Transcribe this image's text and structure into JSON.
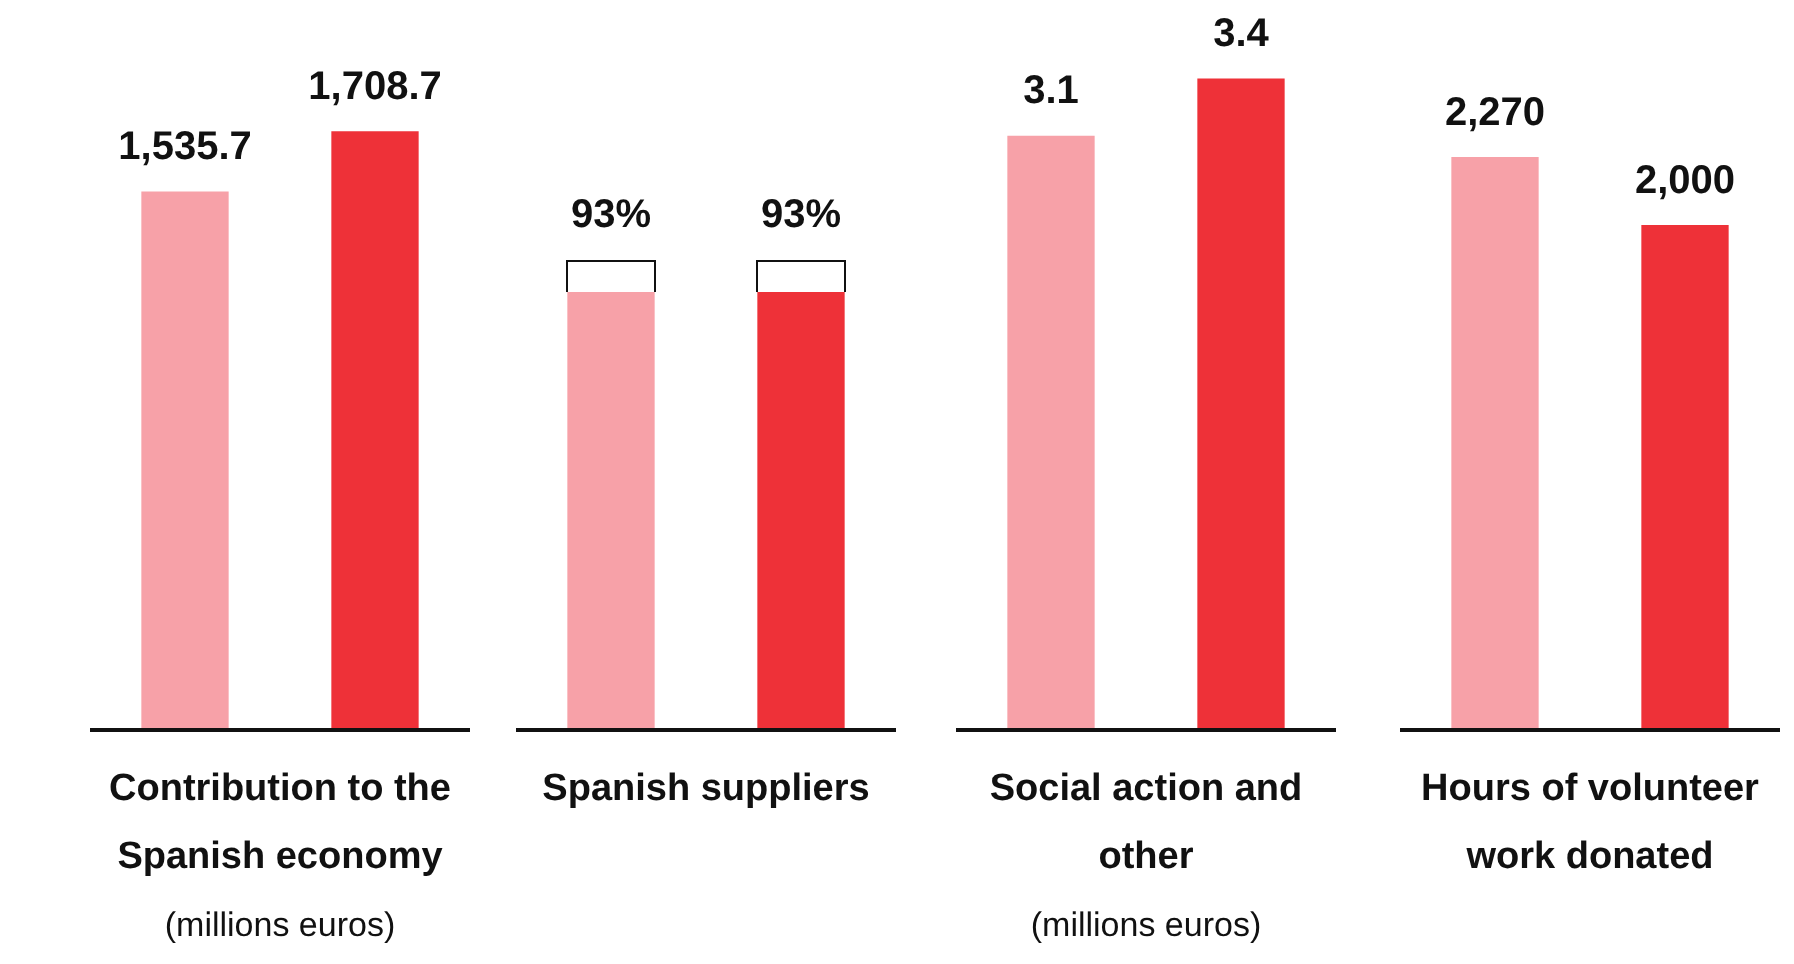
{
  "chart_data": [
    {
      "type": "bar",
      "xlabel": "Contribution to the Spanish economy",
      "annotations": [
        "(millions euros)"
      ],
      "categories": [
        null,
        null
      ],
      "values": [
        1535.7,
        1708.7
      ],
      "colors": [
        "#f7a1a8",
        "#ee3138"
      ],
      "value_labels": [
        "1,535.7",
        "1,708.7"
      ],
      "tick_labels": false
    },
    {
      "type": "bar",
      "xlabel": "Spanish suppliers",
      "categories": [
        null,
        null
      ],
      "values": [
        93,
        93
      ],
      "colors": [
        "#f7a1a8",
        "#ee3138"
      ],
      "value_labels": [
        "93%",
        "93%"
      ],
      "tick_labels": false
    },
    {
      "type": "bar",
      "xlabel": "Social action and other",
      "annotations": [
        "(millions euros)"
      ],
      "categories": [
        null,
        null
      ],
      "values": [
        3.1,
        3.4
      ],
      "colors": [
        "#f7a1a8",
        "#ee3138"
      ],
      "data_labels": true,
      "tick_labels": false
    },
    {
      "type": "bar",
      "xlabel": "Hours of volunteer work donated",
      "categories": [
        null,
        null
      ],
      "values": [
        2270,
        2000
      ],
      "colors": [
        "#f7a1a8",
        "#ee3138"
      ],
      "value_labels": [
        "2,270",
        "2,000"
      ],
      "tick_labels": false
    }
  ]
}
